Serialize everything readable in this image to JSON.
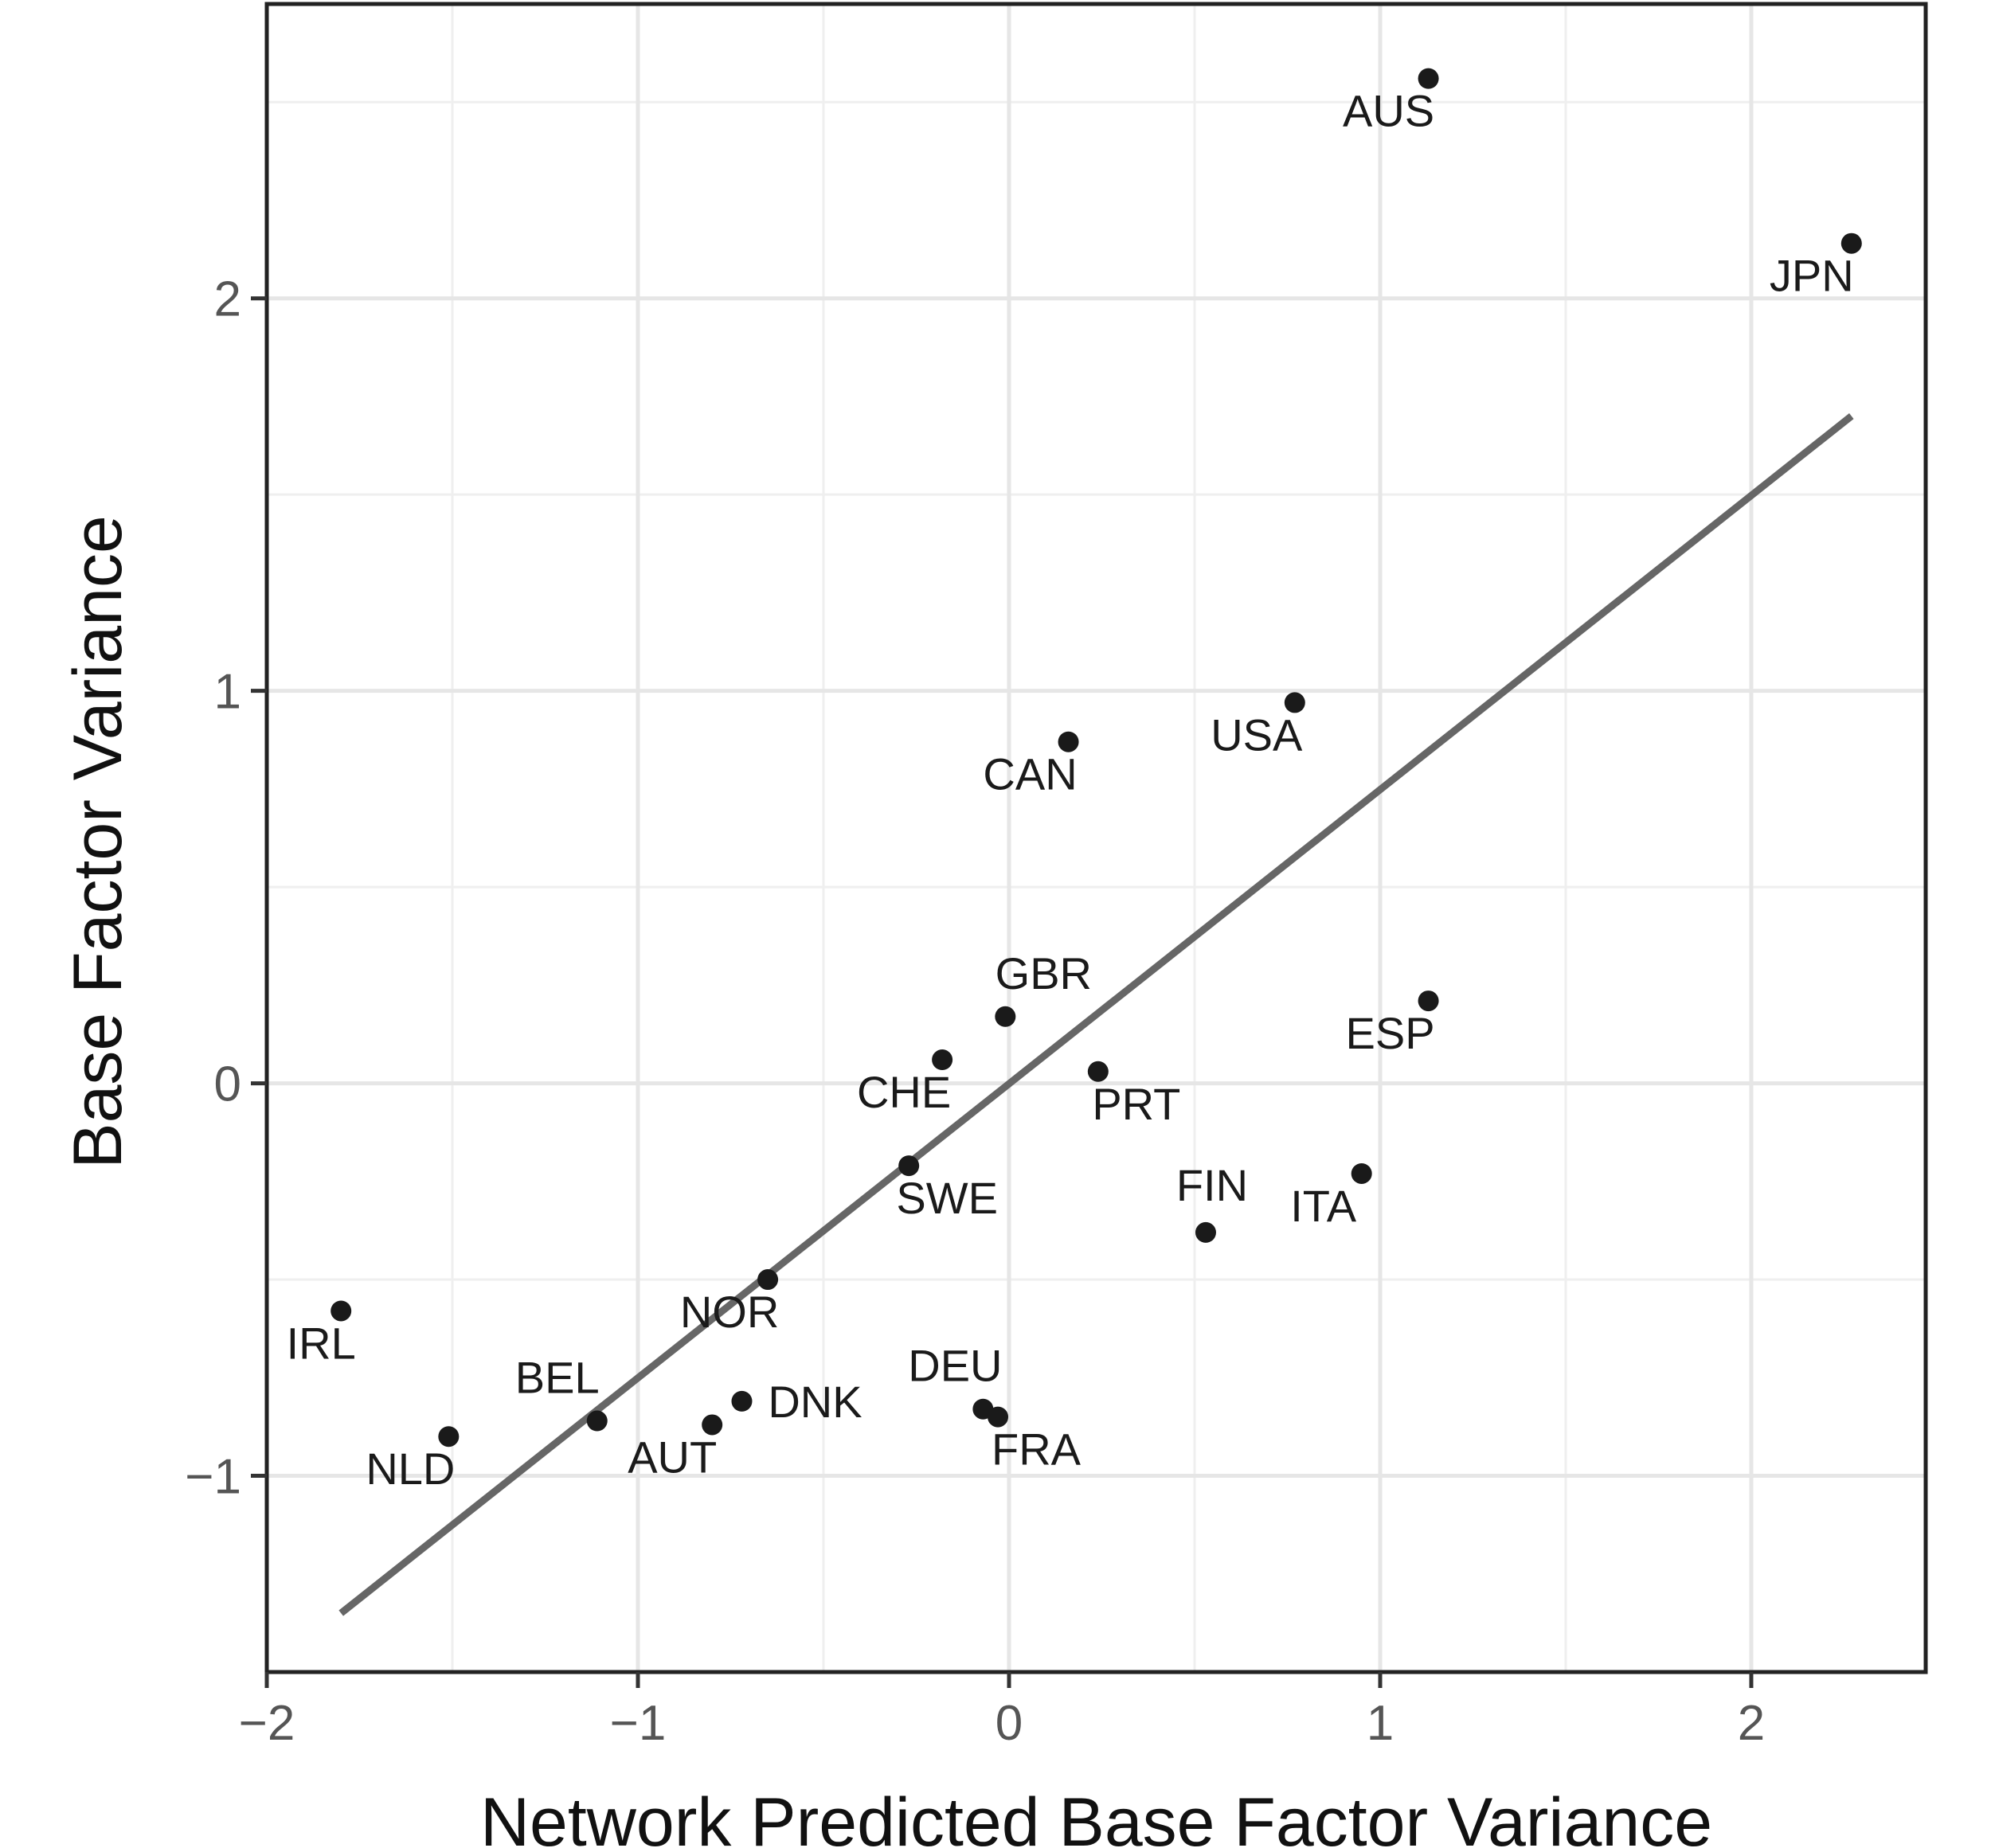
{
  "chart_data": {
    "type": "scatter",
    "title": "",
    "xlabel": "Network Predicted Base Factor Variance",
    "ylabel": "Base Factor Variance",
    "xlim": [
      -2,
      2.47
    ],
    "ylim": [
      -1.5,
      2.75
    ],
    "x_ticks": [
      -2,
      -1,
      0,
      1,
      2
    ],
    "y_ticks": [
      -1,
      0,
      1,
      2
    ],
    "x_tick_labels": [
      "−2",
      "−1",
      "0",
      "1",
      "2"
    ],
    "y_tick_labels": [
      "−1",
      "0",
      "1",
      "2"
    ],
    "grid": true,
    "legend": "none",
    "colors": {
      "points": "#1a1a1a",
      "fit_line": "#666666",
      "grid": "#e6e6e6",
      "frame": "#222222"
    },
    "points": [
      {
        "label": "AUS",
        "x": 1.13,
        "y": 2.56
      },
      {
        "label": "JPN",
        "x": 2.27,
        "y": 2.14
      },
      {
        "label": "USA",
        "x": 0.77,
        "y": 0.97
      },
      {
        "label": "CAN",
        "x": 0.16,
        "y": 0.87
      },
      {
        "label": "GBR",
        "x": -0.01,
        "y": 0.17
      },
      {
        "label": "ESP",
        "x": 1.13,
        "y": 0.21
      },
      {
        "label": "CHE",
        "x": -0.18,
        "y": 0.06
      },
      {
        "label": "PRT",
        "x": 0.24,
        "y": 0.03
      },
      {
        "label": "SWE",
        "x": -0.27,
        "y": -0.21
      },
      {
        "label": "FIN",
        "x": 0.53,
        "y": -0.38
      },
      {
        "label": "ITA",
        "x": 0.95,
        "y": -0.23
      },
      {
        "label": "NOR",
        "x": -0.65,
        "y": -0.5
      },
      {
        "label": "IRL",
        "x": -1.8,
        "y": -0.58
      },
      {
        "label": "BEL",
        "x": -1.11,
        "y": -0.86
      },
      {
        "label": "NLD",
        "x": -1.51,
        "y": -0.9
      },
      {
        "label": "AUT",
        "x": -0.8,
        "y": -0.87
      },
      {
        "label": "DNK",
        "x": -0.72,
        "y": -0.81
      },
      {
        "label": "DEU",
        "x": -0.07,
        "y": -0.83
      },
      {
        "label": "FRA",
        "x": -0.03,
        "y": -0.85
      }
    ],
    "fit_line": {
      "x": [
        -1.8,
        2.27
      ],
      "y": [
        -1.35,
        1.7
      ]
    }
  }
}
